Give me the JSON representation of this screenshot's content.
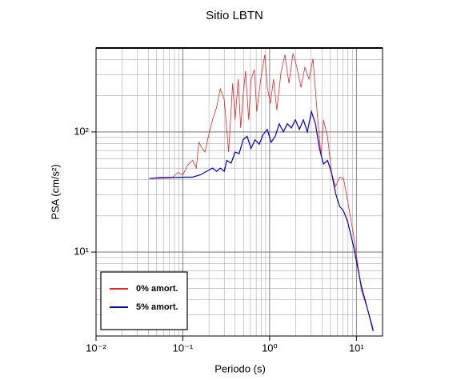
{
  "chart_data": {
    "type": "line",
    "title": "Sitio LBTN",
    "x_label": "Periodo (s)",
    "y_label": "PSA (cm/s²)",
    "log_x": true,
    "log_y": true,
    "grid": true,
    "minor_grid": true,
    "legend_position": "lower left",
    "xlim": [
      0.01,
      20
    ],
    "ylim": [
      2,
      500
    ],
    "xticks": [
      {
        "value": 0.01,
        "label": "10⁻²"
      },
      {
        "value": 0.1,
        "label": "10⁻¹"
      },
      {
        "value": 1,
        "label": "10⁰"
      },
      {
        "value": 10,
        "label": "10¹"
      }
    ],
    "yticks": [
      {
        "value": 10,
        "label": "10¹"
      },
      {
        "value": 100,
        "label": "10²"
      }
    ],
    "series": [
      {
        "name": "0% amort.",
        "color": "#e8262a",
        "x": [
          0.041,
          0.055,
          0.076,
          0.088,
          0.1,
          0.116,
          0.13,
          0.143,
          0.153,
          0.167,
          0.18,
          0.197,
          0.22,
          0.245,
          0.27,
          0.3,
          0.337,
          0.375,
          0.4,
          0.435,
          0.464,
          0.495,
          0.527,
          0.575,
          0.612,
          0.667,
          0.711,
          0.79,
          0.88,
          0.94,
          1.02,
          1.11,
          1.21,
          1.35,
          1.5,
          1.67,
          1.86,
          2.06,
          2.3,
          2.55,
          2.84,
          3.16,
          3.52,
          3.91,
          4.17,
          4.64,
          5.16,
          5.74,
          6.4,
          7.1,
          7.9,
          9.2,
          11.4,
          13.5,
          15.6
        ],
        "values": [
          41,
          42,
          42,
          46,
          44,
          54,
          58,
          50,
          82,
          73,
          68,
          92,
          126,
          160,
          228,
          186,
          68,
          254,
          126,
          275,
          108,
          201,
          321,
          126,
          275,
          330,
          148,
          275,
          440,
          235,
          172,
          275,
          152,
          311,
          440,
          254,
          452,
          346,
          235,
          346,
          275,
          406,
          148,
          63,
          126,
          92,
          46,
          35,
          42,
          41,
          27,
          14.3,
          4.8,
          3.3,
          2.3
        ]
      },
      {
        "name": "5% amort.",
        "color": "#0000d0",
        "x": [
          0.041,
          0.1,
          0.129,
          0.16,
          0.198,
          0.22,
          0.245,
          0.27,
          0.3,
          0.32,
          0.36,
          0.4,
          0.445,
          0.495,
          0.55,
          0.61,
          0.68,
          0.76,
          0.84,
          0.94,
          1.04,
          1.16,
          1.29,
          1.44,
          1.6,
          1.78,
          1.98,
          2.2,
          2.45,
          2.72,
          3.03,
          3.37,
          3.75,
          4.17,
          4.64,
          5.16,
          5.74,
          6.4,
          7.1,
          7.9,
          9.2,
          11.4,
          13.5,
          15.6
        ],
        "values": [
          41,
          42,
          42,
          44,
          48,
          50,
          47,
          50,
          47,
          58,
          55,
          68,
          66,
          86,
          92,
          73,
          86,
          79,
          95,
          105,
          82,
          92,
          117,
          100,
          117,
          108,
          126,
          105,
          126,
          100,
          148,
          117,
          73,
          54,
          58,
          46,
          31,
          24,
          22,
          18,
          11.4,
          5.2,
          3.3,
          2.2
        ]
      }
    ]
  }
}
